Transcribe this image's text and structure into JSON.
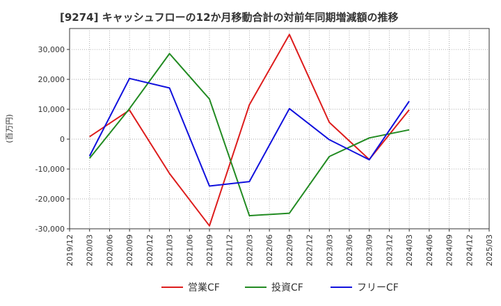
{
  "chart_data": {
    "type": "line",
    "title": "[9274]  キャッシュフローの12か月移動合計の対前年同期増減額の推移",
    "ylabel": "(百万円)",
    "xlabel": "",
    "ylim": [
      -30000,
      37000
    ],
    "yticks": [
      30000,
      20000,
      10000,
      0,
      -10000,
      -20000,
      -30000
    ],
    "ytick_labels": [
      "30,000",
      "20,000",
      "10,000",
      "0",
      "-10,000",
      "-20,000",
      "-30,000"
    ],
    "x": [
      "2019/12",
      "2020/03",
      "2020/06",
      "2020/09",
      "2020/12",
      "2021/03",
      "2021/06",
      "2021/09",
      "2021/12",
      "2022/03",
      "2022/06",
      "2022/09",
      "2022/12",
      "2023/03",
      "2023/06",
      "2023/09",
      "2023/12",
      "2024/03",
      "2024/06",
      "2024/09",
      "2024/12",
      "2025/03"
    ],
    "grid": true,
    "legend_position": "bottom",
    "series": [
      {
        "name": "営業CF",
        "color": "#dd1c1c",
        "values": [
          null,
          800,
          null,
          9700,
          null,
          -11500,
          null,
          -29000,
          null,
          11500,
          null,
          35000,
          null,
          5600,
          null,
          -6800,
          null,
          9800,
          null,
          null,
          null,
          null
        ]
      },
      {
        "name": "投資CF",
        "color": "#228b22",
        "values": [
          null,
          -6400,
          null,
          10200,
          null,
          28600,
          null,
          13400,
          null,
          -25600,
          null,
          -24800,
          null,
          -5800,
          null,
          400,
          null,
          3100,
          null,
          null,
          null,
          null
        ]
      },
      {
        "name": "フリーCF",
        "color": "#1111dd",
        "values": [
          null,
          -5700,
          null,
          20300,
          null,
          17100,
          null,
          -15700,
          null,
          -14200,
          null,
          10200,
          null,
          -200,
          null,
          -6900,
          null,
          12700,
          null,
          null,
          null,
          null
        ]
      }
    ]
  }
}
